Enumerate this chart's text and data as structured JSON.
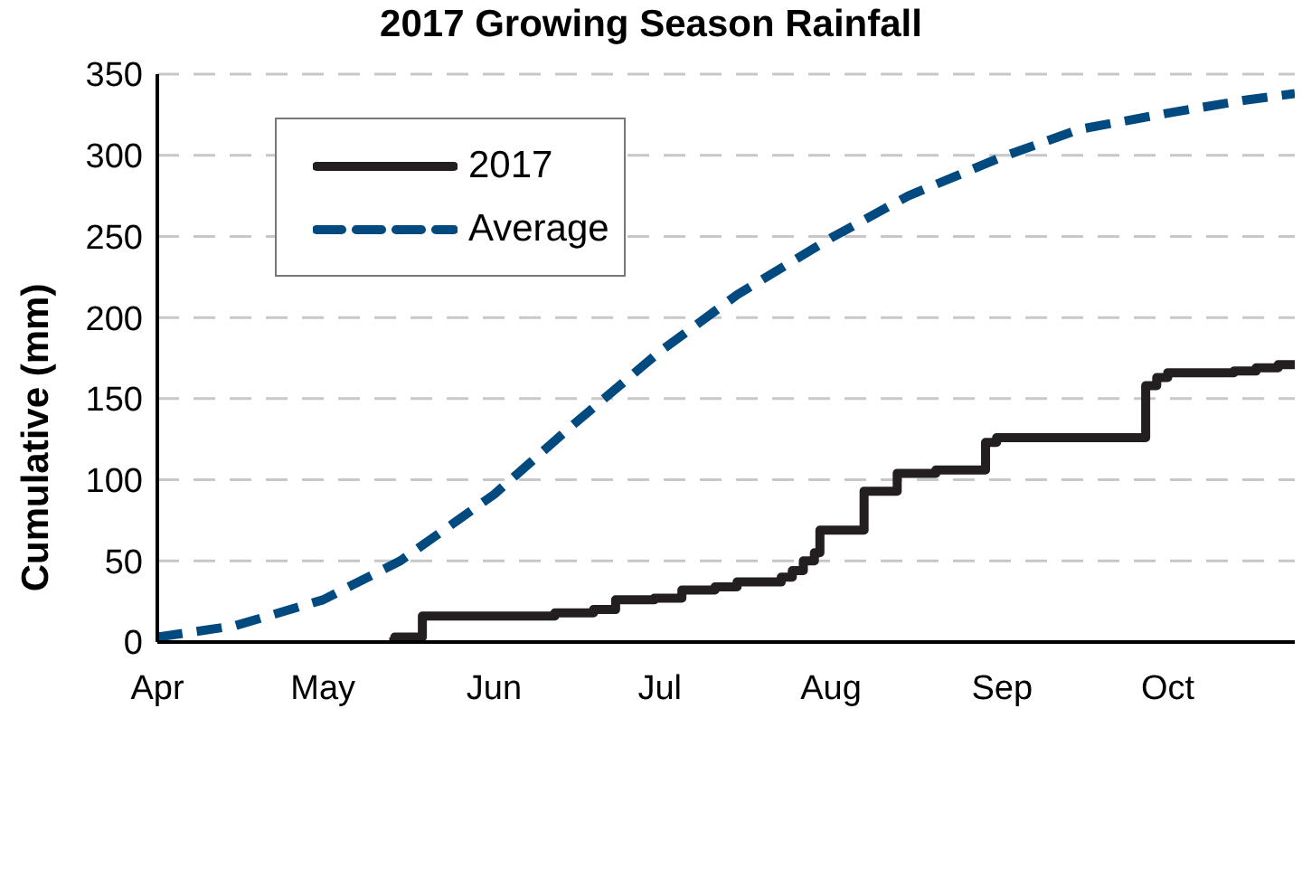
{
  "chart_data": {
    "type": "line",
    "title": "2017 Growing Season Rainfall",
    "ylabel": "Cumulative (mm)",
    "xlim": [
      "--04-01",
      "--10-24"
    ],
    "xticks": [
      {
        "value": "--04-01",
        "label": "Apr"
      },
      {
        "value": "--05-01",
        "label": "May"
      },
      {
        "value": "--06-01",
        "label": "Jun"
      },
      {
        "value": "--07-01",
        "label": "Jul"
      },
      {
        "value": "--08-01",
        "label": "Aug"
      },
      {
        "value": "--09-01",
        "label": "Sep"
      },
      {
        "value": "--10-01",
        "label": "Oct"
      }
    ],
    "ylim": [
      0,
      350
    ],
    "yticks": [
      0,
      50,
      100,
      150,
      200,
      250,
      300,
      350
    ],
    "grid": "y",
    "legend": "top left",
    "marker": "none",
    "series": [
      {
        "name": "2017",
        "type": "step",
        "color": "#231f20",
        "line_style": "solid",
        "x": [
          "--05-13",
          "--05-14",
          "--05-19",
          "--06-12",
          "--06-19",
          "--06-23",
          "--06-30",
          "--07-05",
          "--07-11",
          "--07-15",
          "--07-23",
          "--07-25",
          "--07-27",
          "--07-29",
          "--07-30",
          "--08-07",
          "--08-13",
          "--08-20",
          "--08-29",
          "--08-31",
          "--09-27",
          "--09-29",
          "--10-01",
          "--10-13",
          "--10-17",
          "--10-21",
          "--10-24"
        ],
        "values": [
          0,
          3,
          16,
          18,
          20,
          26,
          27,
          32,
          34,
          37,
          40,
          44,
          50,
          55,
          69,
          93,
          104,
          106,
          123,
          126,
          158,
          163,
          166,
          167,
          169,
          171,
          171
        ]
      },
      {
        "name": "Average",
        "type": "line",
        "color": "#004a80",
        "line_style": "dashed",
        "x": [
          "--04-01",
          "--04-15",
          "--05-01",
          "--05-15",
          "--06-01",
          "--06-15",
          "--07-01",
          "--07-15",
          "--08-01",
          "--08-15",
          "--09-01",
          "--09-15",
          "--10-01",
          "--10-15",
          "--10-24"
        ],
        "values": [
          3,
          10,
          26,
          50,
          91,
          133,
          179,
          214,
          249,
          275,
          299,
          316,
          326,
          334,
          338
        ]
      }
    ]
  }
}
